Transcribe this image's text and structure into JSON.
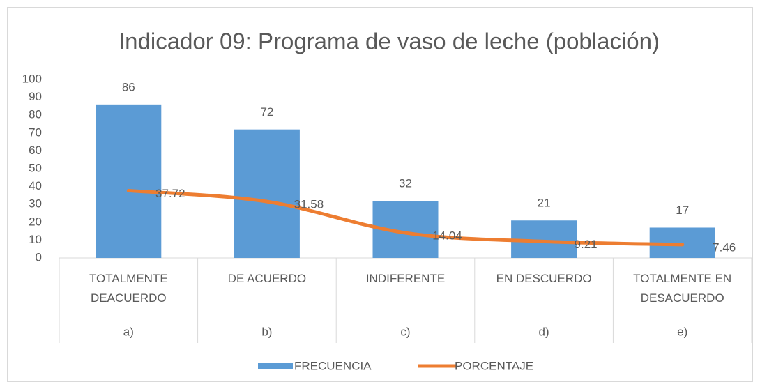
{
  "chart_data": {
    "type": "bar",
    "title": "Indicador 09: Programa de vaso de leche (población)",
    "categories": [
      "TOTALMENTE DEACUERDO",
      "DE ACUERDO",
      "INDIFERENTE",
      "EN DESCUERDO",
      "TOTALMENTE EN DESACUERDO"
    ],
    "category_groups": [
      "a)",
      "b)",
      "c)",
      "d)",
      "e)"
    ],
    "series": [
      {
        "name": "FRECUENCIA",
        "type": "bar",
        "color": "#5b9bd5",
        "values": [
          86,
          72,
          32,
          21,
          17
        ]
      },
      {
        "name": "PORCENTAJE",
        "type": "line",
        "color": "#ed7d31",
        "values": [
          37.72,
          31.58,
          14.04,
          9.21,
          7.46
        ]
      }
    ],
    "ylim": [
      0,
      100
    ],
    "yticks": [
      0,
      10,
      20,
      30,
      40,
      50,
      60,
      70,
      80,
      90,
      100
    ],
    "grid": false,
    "legend": "bottom"
  }
}
